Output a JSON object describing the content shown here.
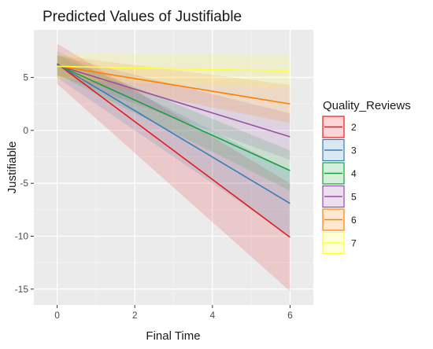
{
  "chart_data": {
    "type": "line",
    "title": "Predicted Values of Justifiable",
    "xlabel": "Final Time",
    "ylabel": "Justifiable",
    "xlim": [
      -0.6,
      6.6
    ],
    "ylim": [
      -16.5,
      9.5
    ],
    "xticks": [
      0,
      2,
      4,
      6
    ],
    "xtick_labels": [
      "0",
      "2",
      "4",
      "6"
    ],
    "yticks": [
      5,
      0,
      -5,
      -10,
      -15
    ],
    "ytick_labels": [
      "5",
      "0",
      "-5",
      "-10",
      "-15"
    ],
    "grid": true,
    "legend_position": "right",
    "legend_title": "Quality_Reviews",
    "series": [
      {
        "name": "2",
        "color": "#E41A1C",
        "x": [
          0,
          6
        ],
        "y": [
          6.3,
          -10.1
        ],
        "ci_lower": [
          4.4,
          -15.2
        ],
        "ci_upper": [
          8.2,
          -5.0
        ]
      },
      {
        "name": "3",
        "color": "#377EB8",
        "x": [
          0,
          6
        ],
        "y": [
          6.25,
          -6.9
        ],
        "ci_lower": [
          5.0,
          -10.0
        ],
        "ci_upper": [
          7.5,
          -3.8
        ]
      },
      {
        "name": "4",
        "color": "#1B9E3C",
        "x": [
          0,
          6
        ],
        "y": [
          6.2,
          -3.8
        ],
        "ci_lower": [
          5.3,
          -5.7
        ],
        "ci_upper": [
          7.1,
          -1.9
        ]
      },
      {
        "name": "5",
        "color": "#984EA3",
        "x": [
          0,
          6
        ],
        "y": [
          6.15,
          -0.6
        ],
        "ci_lower": [
          5.2,
          -2.8
        ],
        "ci_upper": [
          7.1,
          1.6
        ]
      },
      {
        "name": "6",
        "color": "#FF7F00",
        "x": [
          0,
          6
        ],
        "y": [
          6.1,
          2.5
        ],
        "ci_lower": [
          5.1,
          0.7
        ],
        "ci_upper": [
          7.1,
          4.3
        ]
      },
      {
        "name": "7",
        "color": "#FFFF33",
        "x": [
          0,
          6
        ],
        "y": [
          6.05,
          5.6
        ],
        "ci_lower": [
          4.8,
          4.0
        ],
        "ci_upper": [
          7.3,
          7.2
        ]
      }
    ]
  }
}
